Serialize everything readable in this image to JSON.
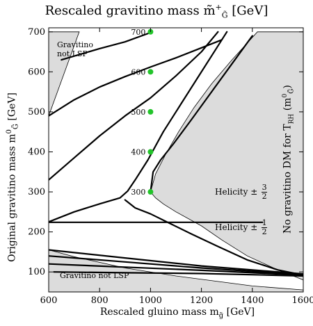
{
  "chart_data": {
    "type": "line",
    "title": "Rescaled gravitino mass m̃",
    "title_sub": "G̃",
    "title_sup": "+",
    "title_unit": "[GeV]",
    "xlabel": "Rescaled gluino mass m",
    "xlabel_sub": "g̃",
    "xlabel_unit": "[GeV]",
    "ylabel": "Original gravitino mass m",
    "ylabel_sub": "G̃",
    "ylabel_sup": "0",
    "ylabel_unit": "[GeV]",
    "xlim": [
      600,
      1600
    ],
    "ylim": [
      50,
      710
    ],
    "xticks": [
      600,
      800,
      1000,
      1200,
      1400,
      1600
    ],
    "yticks": [
      100,
      200,
      300,
      400,
      500,
      600,
      700
    ],
    "grid": false,
    "regions": [
      {
        "name": "gravitino-not-lsp-top",
        "points": [
          [
            600,
            490
          ],
          [
            600,
            700
          ],
          [
            630,
            700
          ],
          [
            720,
            700
          ]
        ]
      },
      {
        "name": "gravitino-not-lsp-bottom",
        "points": [
          [
            600,
            50
          ],
          [
            600,
            155
          ],
          [
            700,
            138
          ],
          [
            900,
            110
          ],
          [
            1100,
            90
          ],
          [
            1400,
            65
          ],
          [
            1600,
            55
          ],
          [
            1600,
            50
          ]
        ]
      },
      {
        "name": "no-gravitino-dm",
        "points": [
          [
            1600,
            700
          ],
          [
            1600,
            80
          ],
          [
            1500,
            105
          ],
          [
            1380,
            140
          ],
          [
            1280,
            180
          ],
          [
            1200,
            215
          ],
          [
            1100,
            250
          ],
          [
            1050,
            270
          ],
          [
            1020,
            285
          ],
          [
            1000,
            300
          ],
          [
            1020,
            345
          ],
          [
            1060,
            395
          ],
          [
            1110,
            450
          ],
          [
            1170,
            510
          ],
          [
            1240,
            570
          ],
          [
            1320,
            630
          ],
          [
            1420,
            700
          ]
        ]
      }
    ],
    "series": [
      {
        "values": [
          [
            600,
            490
          ],
          [
            700,
            530
          ],
          [
            800,
            562
          ],
          [
            900,
            588
          ],
          [
            1000,
            612
          ],
          [
            1100,
            635
          ],
          [
            1200,
            660
          ],
          [
            1280,
            680
          ]
        ]
      },
      {
        "values": [
          [
            650,
            630
          ],
          [
            800,
            658
          ],
          [
            900,
            675
          ],
          [
            1000,
            698
          ]
        ]
      },
      {
        "values": [
          [
            600,
            330
          ],
          [
            700,
            385
          ],
          [
            800,
            440
          ],
          [
            900,
            490
          ],
          [
            1000,
            535
          ],
          [
            1100,
            590
          ],
          [
            1200,
            650
          ],
          [
            1265,
            700
          ]
        ]
      },
      {
        "values": [
          [
            1000,
            300
          ],
          [
            1010,
            350
          ],
          [
            1040,
            380
          ],
          [
            1090,
            420
          ],
          [
            1160,
            480
          ],
          [
            1240,
            550
          ],
          [
            1320,
            620
          ],
          [
            1400,
            690
          ]
        ]
      },
      {
        "values": [
          [
            600,
            225
          ],
          [
            700,
            250
          ],
          [
            800,
            270
          ],
          [
            880,
            285
          ],
          [
            910,
            302
          ],
          [
            940,
            330
          ],
          [
            990,
            380
          ],
          [
            1050,
            450
          ],
          [
            1120,
            520
          ],
          [
            1190,
            590
          ],
          [
            1260,
            660
          ],
          [
            1300,
            700
          ]
        ]
      },
      {
        "values": [
          [
            900,
            280
          ],
          [
            940,
            260
          ],
          [
            1000,
            245
          ],
          [
            1080,
            220
          ],
          [
            1160,
            195
          ],
          [
            1260,
            165
          ],
          [
            1380,
            130
          ],
          [
            1500,
            105
          ],
          [
            1600,
            92
          ]
        ]
      },
      {
        "values": [
          [
            600,
            224
          ],
          [
            1440,
            224
          ]
        ]
      },
      {
        "values": [
          [
            600,
            155
          ],
          [
            900,
            135
          ],
          [
            1200,
            115
          ],
          [
            1600,
            95
          ]
        ]
      },
      {
        "values": [
          [
            600,
            140
          ],
          [
            900,
            125
          ],
          [
            1200,
            110
          ],
          [
            1600,
            93
          ]
        ]
      },
      {
        "values": [
          [
            600,
            120
          ],
          [
            900,
            112
          ],
          [
            1200,
            104
          ],
          [
            1600,
            92
          ]
        ]
      },
      {
        "values": [
          [
            620,
            100
          ],
          [
            900,
            98
          ],
          [
            1200,
            96
          ],
          [
            1600,
            90
          ]
        ]
      }
    ],
    "markers": {
      "color": "#22c42a",
      "points": [
        [
          1000,
          300
        ],
        [
          1000,
          400
        ],
        [
          1000,
          500
        ],
        [
          1000,
          600
        ],
        [
          1000,
          700
        ]
      ],
      "labels": [
        "300",
        "400",
        "500",
        "600",
        "700"
      ]
    },
    "annotations": {
      "top_left": "Gravitino not LSP",
      "bottom": "Gravitino not LSP",
      "right_vertical": "No gravitino DM for T",
      "right_vertical_sub": "RH",
      "right_vertical_arg": "(m",
      "right_vertical_arg_sub": "G̃",
      "right_vertical_arg_sup": "0",
      "right_vertical_arg_close": ")",
      "helicity": "Helicity ±",
      "helicity_top_num": "3",
      "helicity_bottom_num": "1",
      "helicity_den": "2"
    },
    "colors": {
      "region_fill": "#dcdcdc",
      "line": "#000000",
      "marker": "#22c42a"
    }
  }
}
